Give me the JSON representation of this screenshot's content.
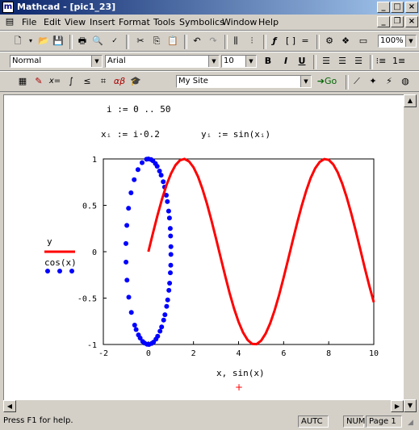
{
  "window": {
    "title": "Mathcad - [pic1_23]",
    "app_icon": "mathcad-icon"
  },
  "menu": [
    "File",
    "Edit",
    "View",
    "Insert",
    "Format",
    "Tools",
    "Symbolics",
    "Window",
    "Help"
  ],
  "toolbar": {
    "zoom": "100%",
    "style": "Normal",
    "font": "Arial",
    "size": "10",
    "bold": "B",
    "italic": "I",
    "underline": "U",
    "site": "My Site",
    "go_label": "Go"
  },
  "worksheet": {
    "range_def": "i := 0 .. 50",
    "x_def": "xᵢ := i·0.2",
    "y_def": "yᵢ := sin(xᵢ)",
    "marker": "+"
  },
  "chart_data": {
    "type": "line",
    "x_tick_labels": [
      "-2",
      "0",
      "2",
      "4",
      "6",
      "8",
      "10"
    ],
    "y_tick_labels": [
      "1",
      "0.5",
      "0",
      "-0.5",
      "-1"
    ],
    "xlim": [
      -2,
      10
    ],
    "ylim": [
      -1,
      1
    ],
    "xlabel": "x, sin(x)",
    "legend": [
      "y",
      "cos(x)"
    ],
    "series": [
      {
        "name": "y",
        "color": "#ff0000",
        "style": "solid",
        "param": "x_i = i*0.2 (i=0..50), y = sin(x_i)"
      },
      {
        "name": "cos(x)",
        "color": "#0000ff",
        "style": "dots",
        "param": "x-axis: sin(x), y-axis: cos(x)"
      }
    ]
  },
  "status": {
    "help": "Press F1 for help.",
    "autc": "AUTC",
    "num": "NUM",
    "page": "Page 1"
  }
}
